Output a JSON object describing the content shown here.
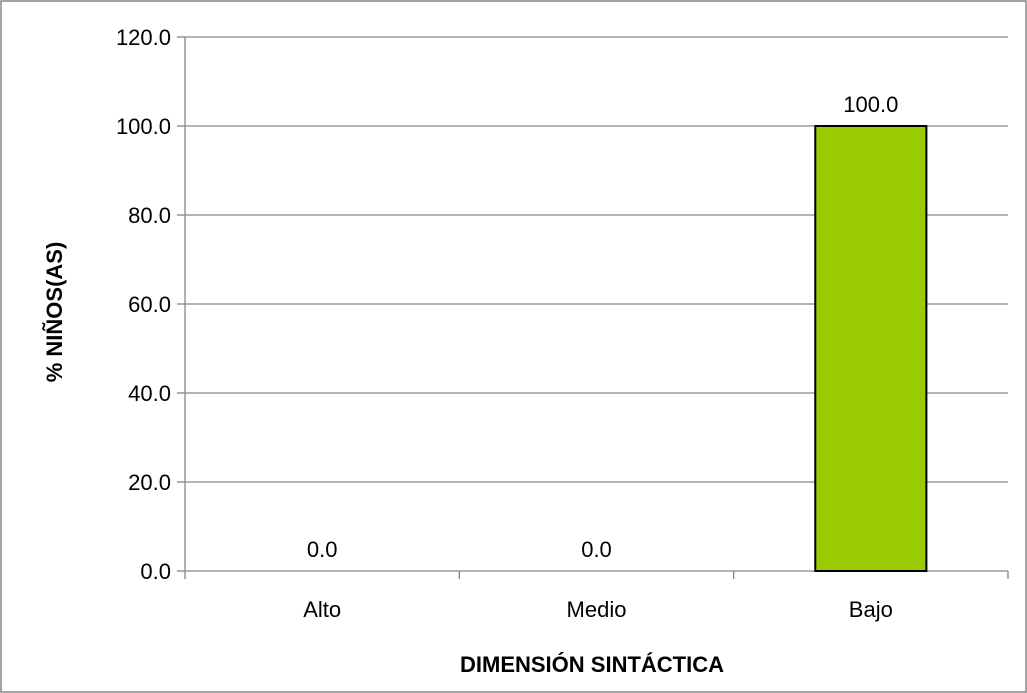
{
  "chart_data": {
    "type": "bar",
    "categories": [
      "Alto",
      "Medio",
      "Bajo"
    ],
    "values": [
      0.0,
      0.0,
      100.0
    ],
    "data_labels": [
      "0.0",
      "0.0",
      "100.0"
    ],
    "title": "",
    "xlabel": "DIMENSIÓN SINTÁCTICA",
    "ylabel": "% NIÑOS(AS)",
    "ylim": [
      0,
      120
    ],
    "yticks": [
      "0.0",
      "20.0",
      "40.0",
      "60.0",
      "80.0",
      "100.0",
      "120.0"
    ],
    "grid": true,
    "legend": "none",
    "colors": {
      "bar_fill": "#99cc00",
      "bar_stroke": "#000000",
      "grid": "#868686",
      "axis": "#868686",
      "frame": "#868686"
    }
  }
}
